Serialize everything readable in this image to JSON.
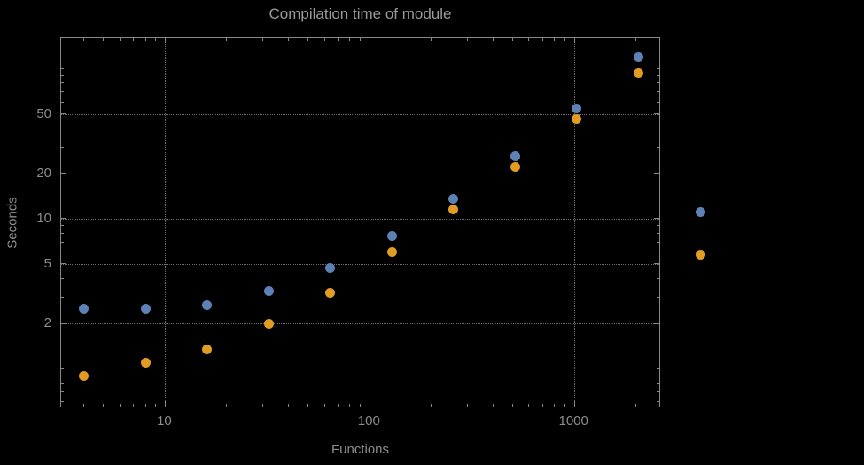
{
  "title": "Compilation time of module",
  "xlabel": "Functions",
  "ylabel": "Seconds",
  "chart_data": {
    "type": "scatter",
    "title": "Compilation time of module",
    "xlabel": "Functions",
    "ylabel": "Seconds",
    "x_scale": "log",
    "y_scale": "log",
    "x": [
      4,
      8,
      16,
      32,
      64,
      128,
      256,
      512,
      1024,
      2048
    ],
    "series": [
      {
        "name": "series-blue",
        "color": "#5e81b5",
        "values": [
          2.5,
          2.5,
          2.65,
          3.3,
          4.7,
          7.7,
          13.5,
          26,
          54,
          120
        ]
      },
      {
        "name": "series-orange",
        "color": "#e19c24",
        "values": [
          0.9,
          1.1,
          1.35,
          2.0,
          3.2,
          6.0,
          11.5,
          22,
          46,
          93
        ]
      }
    ],
    "x_ticks": [
      10,
      100,
      1000
    ],
    "y_ticks": [
      2,
      5,
      10,
      20,
      50
    ],
    "xlim": [
      3.1,
      2600
    ],
    "ylim": [
      0.56,
      160
    ],
    "grid": "dotted",
    "legend_position": "right-outside"
  },
  "legend": {
    "markers": [
      {
        "name": "series-blue",
        "color": "#5e81b5"
      },
      {
        "name": "series-orange",
        "color": "#e19c24"
      }
    ]
  },
  "colors": {
    "background": "#000000",
    "frame": "#878787",
    "grid": "#6e6e6e",
    "text": "#8d8d8d",
    "series1": "#5e81b5",
    "series2": "#e19c24"
  }
}
